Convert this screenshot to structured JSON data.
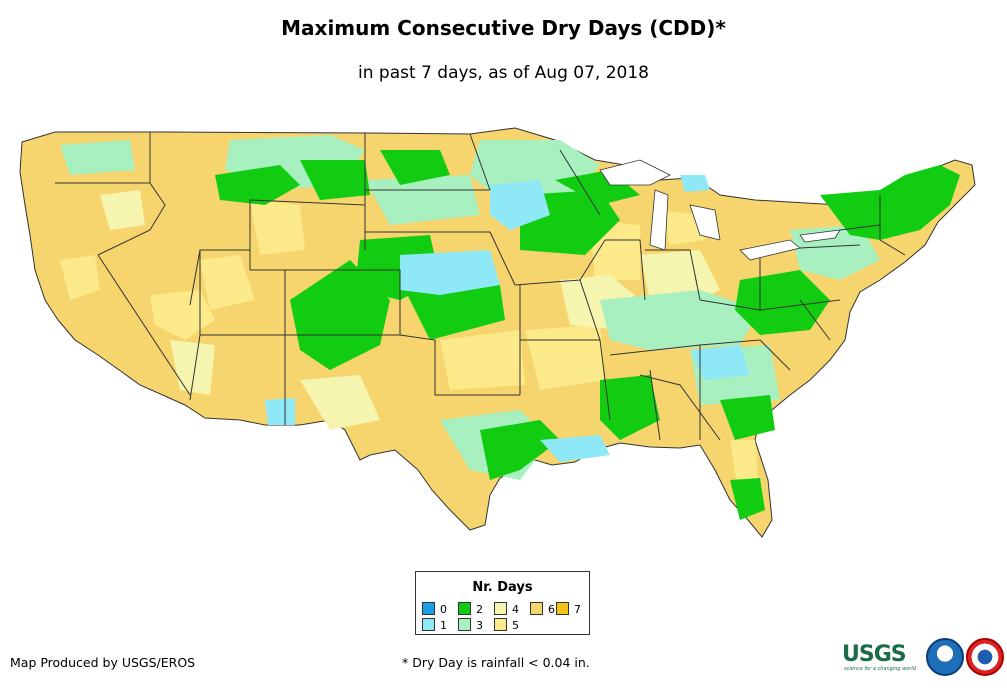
{
  "title": "Maximum Consecutive Dry Days (CDD)*",
  "subtitle": "in past 7 days, as of Aug 07, 2018",
  "legend": {
    "title": "Nr. Days",
    "items": [
      {
        "label": "0",
        "color": "#1aa0e8"
      },
      {
        "label": "1",
        "color": "#8fe8f5"
      },
      {
        "label": "2",
        "color": "#12cc12"
      },
      {
        "label": "3",
        "color": "#a8f0c0"
      },
      {
        "label": "4",
        "color": "#f6f5b0"
      },
      {
        "label": "5",
        "color": "#fbe98a"
      },
      {
        "label": "6",
        "color": "#f6d56e"
      },
      {
        "label": "7",
        "color": "#f3c316"
      }
    ]
  },
  "credit": "Map Produced by USGS/EROS",
  "footnote": "* Dry Day is rainfall < 0.04 in.",
  "logos": {
    "usgs": "USGS",
    "usgs_tagline": "science for a changing world"
  }
}
